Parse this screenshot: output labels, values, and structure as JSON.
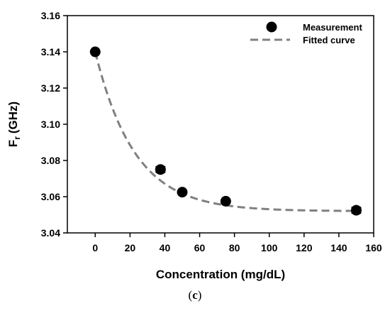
{
  "chart_data": {
    "type": "scatter",
    "xlabel": "Concentration (mg/dL)",
    "ylabel_main": "F",
    "ylabel_sub": "r",
    "ylabel_unit": "(GHz)",
    "xlim": [
      -16,
      160
    ],
    "ylim": [
      3.04,
      3.16
    ],
    "xticks": [
      "0",
      "20",
      "40",
      "60",
      "80",
      "100",
      "120",
      "140",
      "160"
    ],
    "yticks": [
      "3.04",
      "3.06",
      "3.08",
      "3.10",
      "3.12",
      "3.14",
      "3.16"
    ],
    "legend_position": "top-right",
    "series": [
      {
        "name": "Measurement",
        "style": "marker",
        "color": "#000000",
        "x": [
          0,
          37.5,
          50,
          75,
          150
        ],
        "y": [
          3.14,
          3.075,
          3.0625,
          3.0575,
          3.0525
        ],
        "xerr": [
          0,
          2.5,
          0,
          0,
          2.5
        ]
      },
      {
        "name": "Fitted curve",
        "style": "dashed-line",
        "color": "#808080",
        "model": "exponential-decay",
        "y0": 3.052,
        "amplitude": 0.088,
        "rate": 0.044,
        "x_range": [
          0,
          150
        ]
      }
    ]
  },
  "caption": {
    "open": "(",
    "letter": "c",
    "close": ")"
  }
}
